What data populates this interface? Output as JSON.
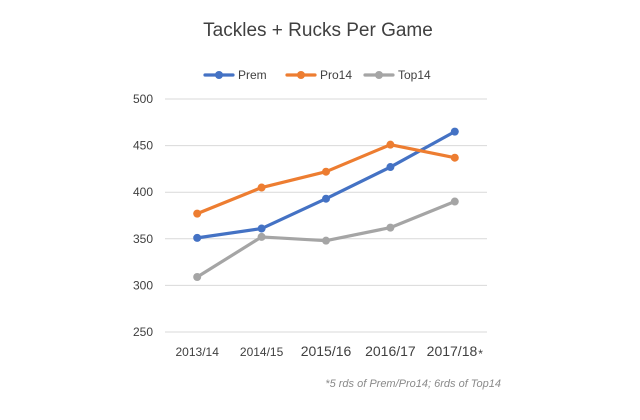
{
  "chart_data": {
    "type": "line",
    "title": "Tackles + Rucks Per Game",
    "categories": [
      "2013/14",
      "2014/15",
      "2015/16",
      "2016/17",
      "2017/18"
    ],
    "category_suffix": [
      "",
      "",
      "",
      "",
      "*"
    ],
    "ylim": [
      250,
      500
    ],
    "yticks": [
      250,
      300,
      350,
      400,
      450,
      500
    ],
    "grid": true,
    "legend_position": "top",
    "series": [
      {
        "name": "Prem",
        "color": "#4472C4",
        "values": [
          351,
          361,
          393,
          427,
          465
        ]
      },
      {
        "name": "Pro14",
        "color": "#ED7D31",
        "values": [
          377,
          405,
          422,
          451,
          437
        ]
      },
      {
        "name": "Top14",
        "color": "#A5A5A5",
        "values": [
          309,
          352,
          348,
          362,
          390
        ]
      }
    ],
    "footnote": "*5 rds of Prem/Pro14; 6rds of Top14"
  }
}
